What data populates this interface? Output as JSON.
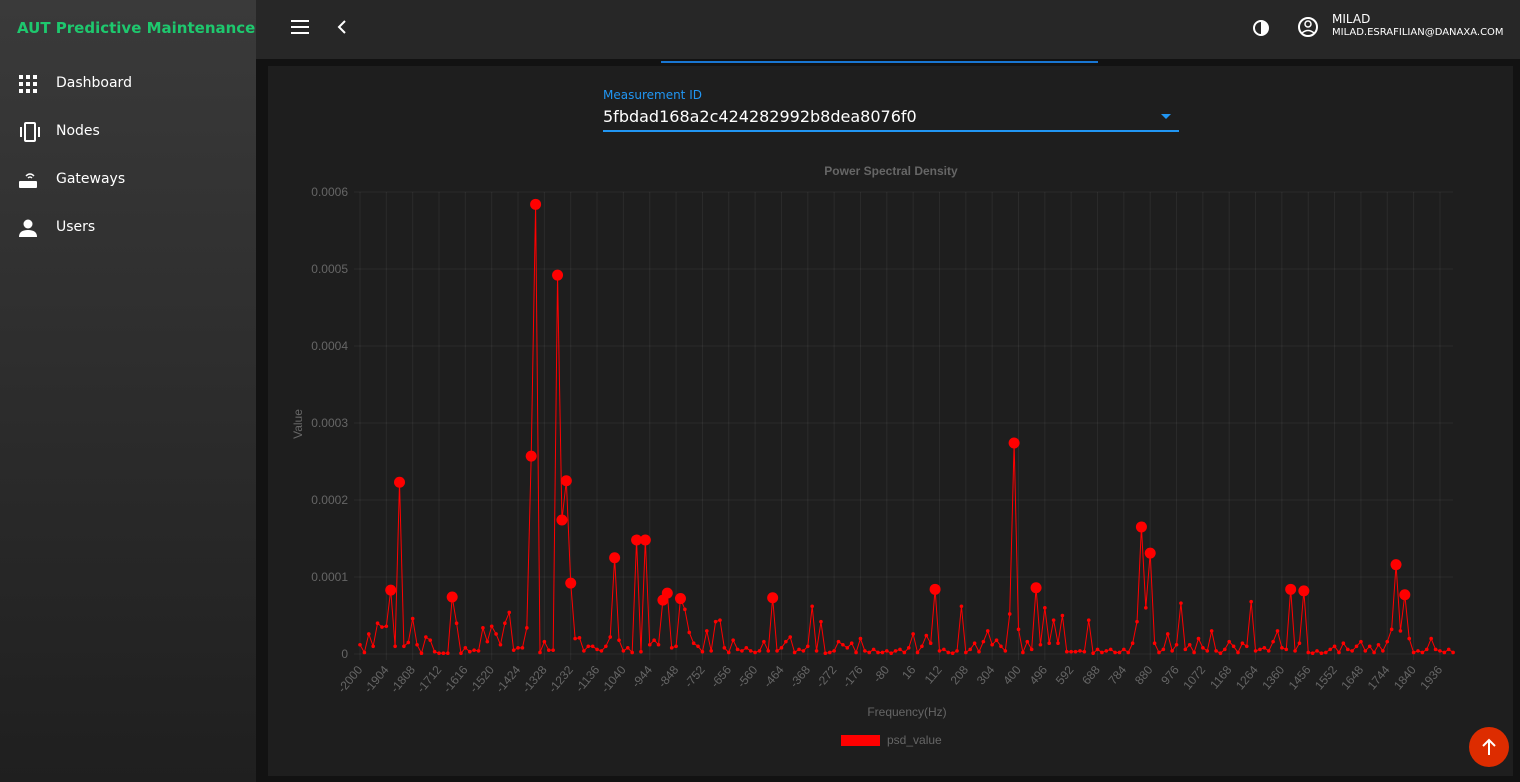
{
  "sidebar": {
    "title": "AUT Predictive Maintenance",
    "items": [
      "Dashboard",
      "Nodes",
      "Gateways",
      "Users"
    ]
  },
  "header": {
    "user_name": "MILAD",
    "user_email": "MILAD.ESRAFILIAN@DANAXA.COM"
  },
  "form": {
    "label": "Measurement ID",
    "value": "5fbdad168a2c424282992b8dea8076f0"
  },
  "chart_data": {
    "type": "line",
    "title": "Power Spectral Density",
    "x_label": "Frequency(Hz)",
    "y_label": "Value",
    "categories": [
      -2000,
      null,
      null,
      null,
      null,
      null,
      -1904,
      null,
      null,
      null,
      null,
      null,
      -1808,
      null,
      null,
      null,
      null,
      null,
      -1712,
      null,
      null,
      null,
      null,
      null,
      -1616,
      null,
      null,
      null,
      null,
      null,
      -1520,
      null,
      null,
      null,
      null,
      null,
      -1424,
      null,
      null,
      null,
      null,
      null,
      -1328,
      null,
      null,
      null,
      null,
      null,
      -1232,
      null,
      null,
      null,
      null,
      null,
      -1136,
      null,
      null,
      null,
      null,
      null,
      -1040,
      null,
      null,
      null,
      null,
      null,
      -944,
      null,
      null,
      null,
      null,
      null,
      -848,
      null,
      null,
      null,
      null,
      null,
      -752,
      null,
      null,
      null,
      null,
      null,
      -656,
      null,
      null,
      null,
      null,
      null,
      -560,
      null,
      null,
      null,
      null,
      null,
      -464,
      null,
      null,
      null,
      null,
      null,
      -368,
      null,
      null,
      null,
      null,
      null,
      -272,
      null,
      null,
      null,
      null,
      null,
      -176,
      null,
      null,
      null,
      null,
      null,
      -80,
      null,
      null,
      null,
      null,
      null,
      16,
      null,
      null,
      null,
      null,
      null,
      112,
      null,
      null,
      null,
      null,
      null,
      208,
      null,
      null,
      null,
      null,
      null,
      304,
      null,
      null,
      null,
      null,
      null,
      400,
      null,
      null,
      null,
      null,
      null,
      496,
      null,
      null,
      null,
      null,
      null,
      592,
      null,
      null,
      null,
      null,
      null,
      688,
      null,
      null,
      null,
      null,
      null,
      784,
      null,
      null,
      null,
      null,
      null,
      880,
      null,
      null,
      null,
      null,
      null,
      976,
      null,
      null,
      null,
      null,
      null,
      1072,
      null,
      null,
      null,
      null,
      null,
      1168,
      null,
      null,
      null,
      null,
      null,
      1264,
      null,
      null,
      null,
      null,
      null,
      1360,
      null,
      null,
      null,
      null,
      null,
      1456,
      null,
      null,
      null,
      null,
      null,
      1552,
      null,
      null,
      null,
      null,
      null,
      1648,
      null,
      null,
      null,
      null,
      null,
      1744,
      null,
      null,
      null,
      null,
      null,
      1840,
      null,
      null,
      null,
      null,
      null,
      1936,
      null,
      null,
      null
    ],
    "series": [
      {
        "name": "psd_value",
        "color": "#ff0000",
        "values": [
          1.2e-05,
          2e-06,
          2.6e-05,
          1e-05,
          4e-05,
          3.5e-05,
          3.6e-05,
          8.3e-05,
          1e-05,
          0.000223,
          1e-05,
          1.5e-05,
          4.6e-05,
          1.2e-05,
          1e-06,
          2.2e-05,
          1.8e-05,
          3e-06,
          1e-06,
          1e-06,
          1e-06,
          7.4e-05,
          4e-05,
          1e-06,
          8e-06,
          3e-06,
          5e-06,
          4e-06,
          3.4e-05,
          1.6e-05,
          3.6e-05,
          2.6e-05,
          1.2e-05,
          4e-05,
          5.4e-05,
          5e-06,
          8e-06,
          8e-06,
          3.4e-05,
          0.000257,
          0.000584,
          2e-06,
          1.6e-05,
          5e-06,
          5e-06,
          0.000492,
          0.000174,
          0.000225,
          9.2e-05,
          2e-05,
          2.1e-05,
          4e-06,
          1e-05,
          1e-05,
          6e-06,
          4e-06,
          1e-05,
          2.2e-05,
          0.000125,
          1.8e-05,
          4e-06,
          8e-06,
          2e-06,
          0.000148,
          3e-06,
          0.000148,
          1.2e-05,
          1.8e-05,
          1.2e-05,
          7e-05,
          7.9e-05,
          8e-06,
          1e-05,
          7.2e-05,
          5.8e-05,
          2.8e-05,
          1.4e-05,
          1e-05,
          3e-06,
          3e-05,
          4e-06,
          4.2e-05,
          4.4e-05,
          8e-06,
          2e-06,
          1.8e-05,
          6e-06,
          4e-06,
          8e-06,
          4e-06,
          2e-06,
          4e-06,
          1.6e-05,
          4e-06,
          7.3e-05,
          4e-06,
          8e-06,
          1.6e-05,
          2.2e-05,
          2e-06,
          6e-06,
          4e-06,
          1e-05,
          6.2e-05,
          4e-06,
          4.2e-05,
          1e-06,
          2e-06,
          4e-06,
          1.6e-05,
          1.2e-05,
          8e-06,
          1.4e-05,
          2e-06,
          2e-05,
          4e-06,
          2e-06,
          6e-06,
          2e-06,
          2e-06,
          4e-06,
          1e-06,
          4e-06,
          6e-06,
          2e-06,
          8e-06,
          2.6e-05,
          2e-06,
          1e-05,
          2.4e-05,
          1.4e-05,
          8.4e-05,
          4e-06,
          6e-06,
          2e-06,
          1e-06,
          4e-06,
          6.2e-05,
          2e-06,
          6e-06,
          1.4e-05,
          3e-06,
          1.6e-05,
          3e-05,
          1.2e-05,
          1.8e-05,
          1e-05,
          4e-06,
          5.2e-05,
          0.000274,
          3.2e-05,
          2e-06,
          1.6e-05,
          6e-06,
          8.6e-05,
          1.2e-05,
          6e-05,
          1.4e-05,
          4.4e-05,
          1.4e-05,
          5e-05,
          3e-06,
          3e-06,
          3e-06,
          4e-06,
          3e-06,
          4.4e-05,
          1e-06,
          6e-06,
          2e-06,
          4e-06,
          6e-06,
          2e-06,
          2e-06,
          6e-06,
          2e-06,
          1.4e-05,
          4.2e-05,
          0.000165,
          6e-05,
          0.000131,
          1.4e-05,
          2e-06,
          6e-06,
          2.6e-05,
          4e-06,
          1.2e-05,
          6.6e-05,
          6e-06,
          1.2e-05,
          2e-06,
          2e-05,
          8e-06,
          4e-06,
          3e-05,
          4e-06,
          1e-06,
          6e-06,
          1.6e-05,
          1e-05,
          2e-06,
          1.4e-05,
          1e-05,
          6.8e-05,
          4e-06,
          6e-06,
          8e-06,
          4e-06,
          1.6e-05,
          3e-05,
          8e-06,
          6e-06,
          8.4e-05,
          4e-06,
          1.4e-05,
          8.2e-05,
          2e-06,
          1e-06,
          4e-06,
          1e-06,
          2e-06,
          6e-06,
          1e-05,
          2e-06,
          1.4e-05,
          6e-06,
          4e-06,
          1e-05,
          1.6e-05,
          4e-06,
          1e-05,
          2e-06,
          1.2e-05,
          4e-06,
          1.6e-05,
          3.2e-05,
          0.000116,
          3e-05,
          7.7e-05,
          2e-05,
          2e-06,
          4e-06,
          2e-06,
          6e-06,
          2e-05,
          6e-06,
          4e-06,
          2e-06,
          6e-06,
          2e-06
        ]
      }
    ],
    "ylim": [
      0,
      0.0006
    ],
    "yticks": [
      0,
      0.0001,
      0.0002,
      0.0003,
      0.0004,
      0.0005,
      0.0006
    ],
    "grid": true
  }
}
